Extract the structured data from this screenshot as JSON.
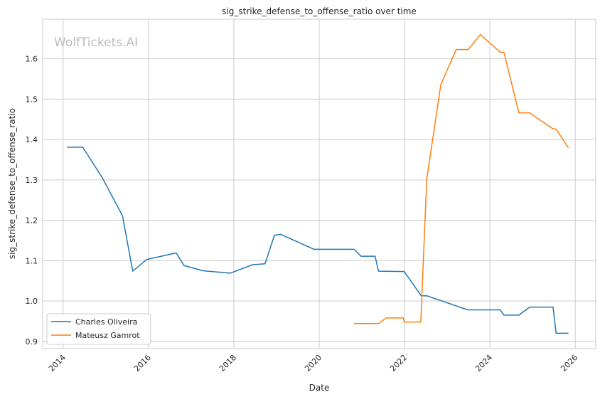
{
  "watermark": "WolfTickets.AI",
  "colors": {
    "Charles Oliveira": "#1f77b4",
    "Mateusz Gamrot": "#ff7f0e",
    "grid": "#cccccc"
  },
  "chart_data": {
    "type": "line",
    "title": "sig_strike_defense_to_offense_ratio over time",
    "xlabel": "Date",
    "ylabel": "sig_strike_defense_to_offense_ratio",
    "xlim": [
      2013.52,
      2026.48
    ],
    "ylim": [
      0.882,
      1.698
    ],
    "xticks": [
      2014,
      2016,
      2018,
      2020,
      2022,
      2024,
      2026
    ],
    "xtick_labels": [
      "2014",
      "2016",
      "2018",
      "2020",
      "2022",
      "2024",
      "2026"
    ],
    "yticks": [
      0.9,
      1.0,
      1.1,
      1.2,
      1.3,
      1.4,
      1.5,
      1.6
    ],
    "ytick_labels": [
      "0.9",
      "1.0",
      "1.1",
      "1.2",
      "1.3",
      "1.4",
      "1.5",
      "1.6"
    ],
    "grid": true,
    "legend_position": "lower-left",
    "series": [
      {
        "name": "Charles Oliveira",
        "x": [
          2014.09,
          2014.46,
          2014.92,
          2015.39,
          2015.63,
          2015.96,
          2016.65,
          2016.83,
          2017.27,
          2017.92,
          2018.44,
          2018.73,
          2018.95,
          2019.1,
          2019.88,
          2020.82,
          2020.98,
          2021.31,
          2021.39,
          2021.99,
          2022.39,
          2022.52,
          2023.48,
          2024.24,
          2024.33,
          2024.68,
          2024.93,
          2025.48,
          2025.55,
          2025.84
        ],
        "y": [
          1.381,
          1.381,
          1.305,
          1.211,
          1.074,
          1.103,
          1.119,
          1.088,
          1.075,
          1.069,
          1.09,
          1.092,
          1.163,
          1.165,
          1.128,
          1.128,
          1.111,
          1.111,
          1.074,
          1.073,
          1.013,
          1.013,
          0.978,
          0.978,
          0.965,
          0.965,
          0.985,
          0.985,
          0.92,
          0.92
        ]
      },
      {
        "name": "Mateusz Gamrot",
        "x": [
          2020.81,
          2021.39,
          2021.57,
          2021.97,
          2021.99,
          2022.38,
          2022.52,
          2022.85,
          2023.21,
          2023.49,
          2023.78,
          2024.24,
          2024.33,
          2024.68,
          2024.93,
          2025.48,
          2025.55,
          2025.84
        ],
        "y": [
          0.944,
          0.944,
          0.958,
          0.958,
          0.948,
          0.948,
          1.302,
          1.536,
          1.623,
          1.623,
          1.66,
          1.616,
          1.616,
          1.466,
          1.466,
          1.426,
          1.426,
          1.379
        ]
      }
    ]
  }
}
